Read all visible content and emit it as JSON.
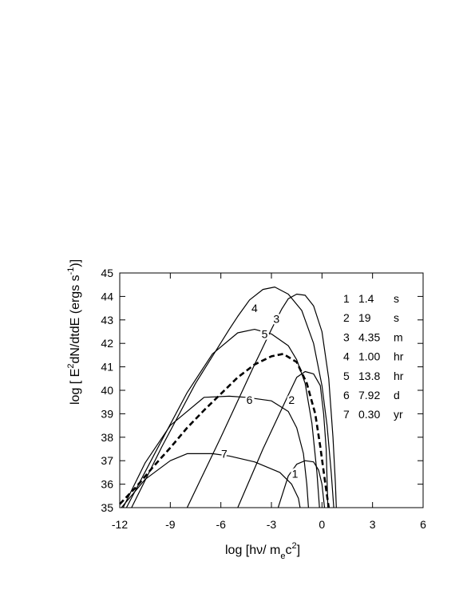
{
  "chart_data": {
    "type": "line",
    "title": "",
    "xlabel": "log [hν/ m",
    "xlabel_sub": "e",
    "xlabel_tail": "c",
    "xlabel_sup": "2",
    "xlabel_close": "]",
    "ylabel": "log [ E",
    "ylabel_sup": "2",
    "ylabel_mid": "dN/dtdE (ergs s",
    "ylabel_sup2": "-1",
    "ylabel_close": ")]",
    "xlim": [
      -12,
      6
    ],
    "ylim": [
      35,
      45
    ],
    "x_ticks": [
      -12,
      -9,
      -6,
      -3,
      0,
      3,
      6
    ],
    "x_tick_labels": [
      "-12",
      "-9",
      "-6",
      "-3",
      "0",
      "3",
      "6"
    ],
    "y_ticks": [
      35,
      36,
      37,
      38,
      39,
      40,
      41,
      42,
      43,
      44,
      45
    ],
    "y_tick_labels": [
      "35",
      "36",
      "37",
      "38",
      "39",
      "40",
      "41",
      "42",
      "43",
      "44",
      "45"
    ],
    "grid": false,
    "legend_position": "top-right",
    "legend": [
      {
        "num": "1",
        "value": "1.4",
        "unit": "s"
      },
      {
        "num": "2",
        "value": "19",
        "unit": "s"
      },
      {
        "num": "3",
        "value": "4.35",
        "unit": "m"
      },
      {
        "num": "4",
        "value": "1.00",
        "unit": "hr"
      },
      {
        "num": "5",
        "value": "13.8",
        "unit": "hr"
      },
      {
        "num": "6",
        "value": "7.92",
        "unit": "d"
      },
      {
        "num": "7",
        "value": "0.30",
        "unit": "yr"
      }
    ],
    "series": [
      {
        "name": "1",
        "style": "solid",
        "label_at": [
          -1.6,
          36.45
        ],
        "points": [
          [
            -2.6,
            35.0
          ],
          [
            -2.0,
            36.35
          ],
          [
            -1.5,
            36.85
          ],
          [
            -1.0,
            37.0
          ],
          [
            -0.5,
            36.95
          ],
          [
            -0.2,
            36.6
          ],
          [
            0.0,
            36.0
          ],
          [
            0.15,
            35.0
          ]
        ]
      },
      {
        "name": "2",
        "style": "solid",
        "label_at": [
          -1.8,
          39.6
        ],
        "points": [
          [
            -5.0,
            35.0
          ],
          [
            -3.5,
            37.5
          ],
          [
            -2.0,
            39.8
          ],
          [
            -1.5,
            40.55
          ],
          [
            -1.0,
            40.8
          ],
          [
            -0.5,
            40.7
          ],
          [
            -0.1,
            40.2
          ],
          [
            0.1,
            39.0
          ],
          [
            0.25,
            37.5
          ],
          [
            0.35,
            35.0
          ]
        ]
      },
      {
        "name": "3",
        "style": "solid",
        "label_at": [
          -2.7,
          43.05
        ],
        "points": [
          [
            -8.0,
            35.0
          ],
          [
            -6.0,
            38.0
          ],
          [
            -4.0,
            41.1
          ],
          [
            -3.0,
            42.6
          ],
          [
            -2.4,
            43.45
          ],
          [
            -2.0,
            43.9
          ],
          [
            -1.5,
            44.1
          ],
          [
            -1.0,
            44.05
          ],
          [
            -0.5,
            43.6
          ],
          [
            0.0,
            42.5
          ],
          [
            0.4,
            40.5
          ],
          [
            0.65,
            38.0
          ],
          [
            0.8,
            36.0
          ],
          [
            0.85,
            35.0
          ]
        ]
      },
      {
        "name": "4",
        "style": "solid",
        "label_at": [
          -4.0,
          43.5
        ],
        "points": [
          [
            -11.3,
            35.0
          ],
          [
            -9.5,
            37.6
          ],
          [
            -7.5,
            40.3
          ],
          [
            -5.5,
            42.6
          ],
          [
            -5.0,
            43.15
          ],
          [
            -4.3,
            43.85
          ],
          [
            -3.5,
            44.3
          ],
          [
            -2.8,
            44.4
          ],
          [
            -2.0,
            44.1
          ],
          [
            -1.2,
            43.4
          ],
          [
            -0.5,
            42.0
          ],
          [
            0.0,
            40.2
          ],
          [
            0.3,
            38.5
          ],
          [
            0.55,
            36.5
          ],
          [
            0.7,
            35.0
          ]
        ]
      },
      {
        "name": "5",
        "style": "solid",
        "label_at": [
          -3.4,
          42.4
        ],
        "points": [
          [
            -11.6,
            35.0
          ],
          [
            -10.0,
            37.2
          ],
          [
            -8.0,
            39.9
          ],
          [
            -6.5,
            41.55
          ],
          [
            -5.0,
            42.45
          ],
          [
            -4.0,
            42.6
          ],
          [
            -3.0,
            42.4
          ],
          [
            -2.0,
            41.9
          ],
          [
            -1.5,
            41.3
          ],
          [
            -1.0,
            40.3
          ],
          [
            -0.6,
            38.6
          ],
          [
            -0.3,
            36.5
          ],
          [
            -0.15,
            35.0
          ]
        ]
      },
      {
        "name": "6",
        "style": "solid",
        "label_at": [
          -4.3,
          39.6
        ],
        "points": [
          [
            -11.8,
            35.0
          ],
          [
            -10.5,
            36.9
          ],
          [
            -9.0,
            38.5
          ],
          [
            -7.0,
            39.7
          ],
          [
            -5.5,
            39.75
          ],
          [
            -4.5,
            39.7
          ],
          [
            -3.0,
            39.55
          ],
          [
            -2.0,
            39.1
          ],
          [
            -1.5,
            38.4
          ],
          [
            -1.1,
            37.3
          ],
          [
            -0.9,
            36.0
          ],
          [
            -0.8,
            35.0
          ]
        ]
      },
      {
        "name": "7",
        "style": "solid",
        "label_at": [
          -5.8,
          37.3
        ],
        "points": [
          [
            -11.9,
            35.0
          ],
          [
            -10.5,
            36.2
          ],
          [
            -9.0,
            37.0
          ],
          [
            -8.0,
            37.3
          ],
          [
            -6.5,
            37.3
          ],
          [
            -5.5,
            37.2
          ],
          [
            -4.0,
            36.95
          ],
          [
            -2.5,
            36.5
          ],
          [
            -1.8,
            36.0
          ],
          [
            -1.4,
            35.4
          ],
          [
            -1.3,
            35.0
          ]
        ]
      },
      {
        "name": "",
        "style": "dashed",
        "label_at": null,
        "points": [
          [
            -12.0,
            35.15
          ],
          [
            -11.0,
            35.9
          ],
          [
            -10.0,
            36.75
          ],
          [
            -9.0,
            37.55
          ],
          [
            -8.0,
            38.4
          ],
          [
            -7.0,
            39.15
          ],
          [
            -6.0,
            39.85
          ],
          [
            -5.0,
            40.55
          ],
          [
            -4.0,
            41.1
          ],
          [
            -3.0,
            41.45
          ],
          [
            -2.3,
            41.55
          ],
          [
            -1.5,
            41.2
          ],
          [
            -0.9,
            40.3
          ],
          [
            -0.4,
            39.0
          ],
          [
            -0.1,
            37.6
          ],
          [
            0.2,
            36.0
          ],
          [
            0.4,
            35.0
          ]
        ]
      }
    ]
  }
}
